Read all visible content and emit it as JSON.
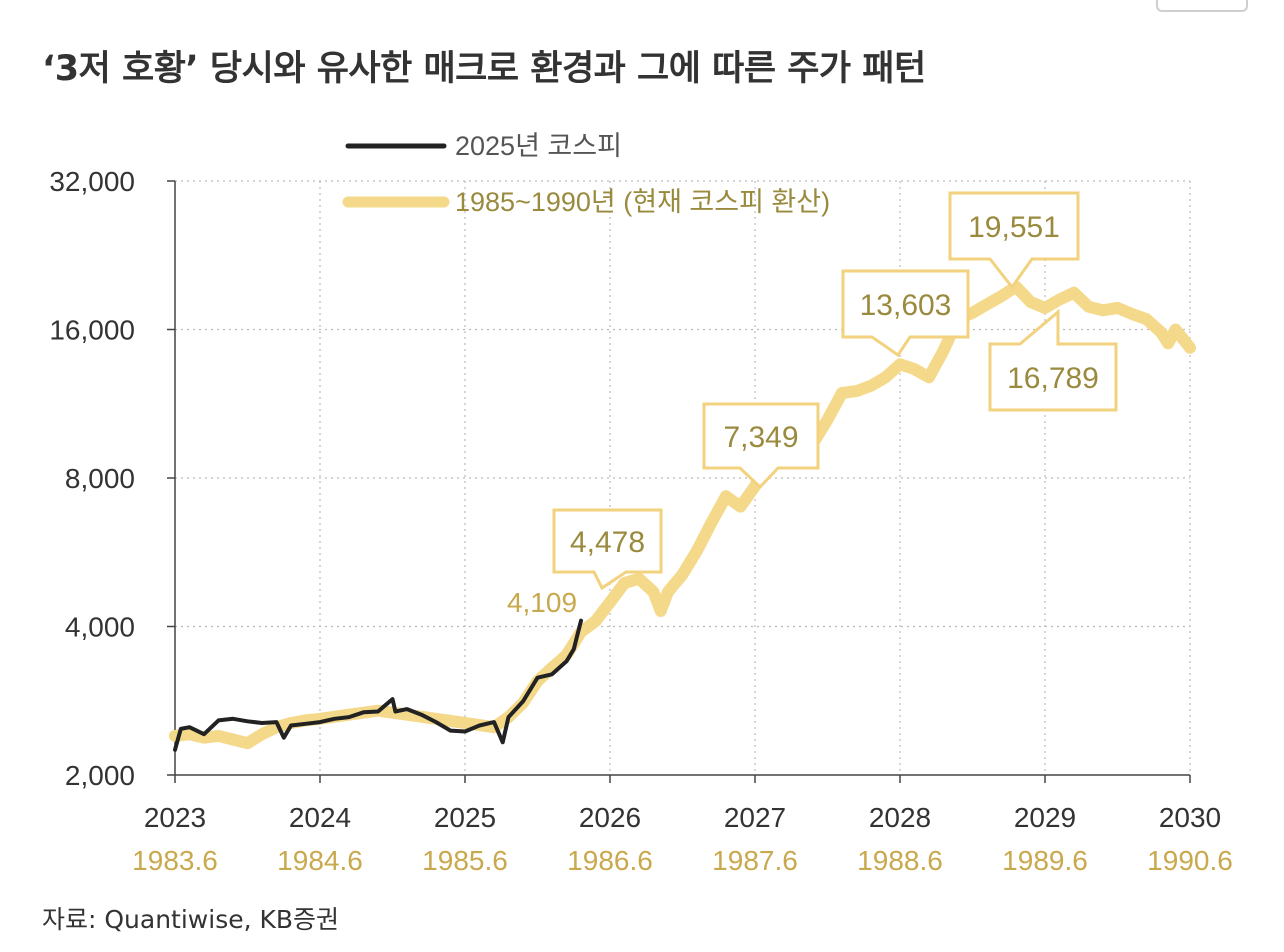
{
  "title": "‘3저 호황’ 당시와 유사한 매크로 환경과 그에 따른 주가 패턴",
  "source": "자료: Quantiwise, KB증권",
  "colors": {
    "kospi": "#222222",
    "past": "#F5D98A",
    "label": "#9A8A3E",
    "grid": "#BBBBBB",
    "axis": "#444444"
  },
  "chart_data": {
    "type": "line",
    "yscale": "log2",
    "ylim": [
      2000,
      32000
    ],
    "yticks": [
      "2,000",
      "4,000",
      "8,000",
      "16,000",
      "32,000"
    ],
    "ytick_values": [
      2000,
      4000,
      8000,
      16000,
      32000
    ],
    "xlim": [
      2023.0,
      2030.0
    ],
    "xticks": [
      "2023",
      "2024",
      "2025",
      "2026",
      "2027",
      "2028",
      "2029",
      "2030"
    ],
    "xticks_secondary": [
      "1983.6",
      "1984.6",
      "1985.6",
      "1986.6",
      "1987.6",
      "1988.6",
      "1989.6",
      "1990.6"
    ],
    "legend": [
      "2025년 코스피",
      "1985~1990년 (현재 코스피 환산)"
    ],
    "series": [
      {
        "name": "2025년 코스피",
        "x": [
          2023.0,
          2023.04,
          2023.1,
          2023.2,
          2023.3,
          2023.4,
          2023.5,
          2023.6,
          2023.7,
          2023.75,
          2023.8,
          2023.9,
          2024.0,
          2024.1,
          2024.2,
          2024.3,
          2024.4,
          2024.5,
          2024.52,
          2024.6,
          2024.7,
          2024.8,
          2024.9,
          2025.0,
          2025.1,
          2025.2,
          2025.26,
          2025.3,
          2025.4,
          2025.5,
          2025.6,
          2025.7,
          2025.75,
          2025.8
        ],
        "values": [
          2250,
          2480,
          2500,
          2420,
          2580,
          2600,
          2570,
          2550,
          2560,
          2380,
          2520,
          2540,
          2560,
          2600,
          2620,
          2680,
          2690,
          2850,
          2690,
          2720,
          2650,
          2560,
          2460,
          2450,
          2520,
          2560,
          2330,
          2620,
          2820,
          3150,
          3200,
          3400,
          3600,
          4109
        ]
      },
      {
        "name": "1985~1990년 (현재 코스피 환산)",
        "x": [
          2023.0,
          2023.1,
          2023.2,
          2023.3,
          2023.4,
          2023.5,
          2023.6,
          2023.7,
          2023.8,
          2023.9,
          2024.0,
          2024.2,
          2024.4,
          2024.6,
          2024.8,
          2025.0,
          2025.2,
          2025.3,
          2025.4,
          2025.5,
          2025.6,
          2025.7,
          2025.8,
          2025.9,
          2026.0,
          2026.1,
          2026.2,
          2026.3,
          2026.35,
          2026.4,
          2026.5,
          2026.6,
          2026.7,
          2026.8,
          2026.9,
          2027.0,
          2027.1,
          2027.2,
          2027.3,
          2027.4,
          2027.5,
          2027.6,
          2027.7,
          2027.8,
          2027.9,
          2028.0,
          2028.1,
          2028.2,
          2028.3,
          2028.4,
          2028.5,
          2028.6,
          2028.7,
          2028.8,
          2028.9,
          2029.0,
          2029.1,
          2029.2,
          2029.3,
          2029.4,
          2029.5,
          2029.6,
          2029.7,
          2029.8,
          2029.85,
          2029.9,
          2030.0
        ],
        "values": [
          2400,
          2420,
          2380,
          2400,
          2360,
          2320,
          2420,
          2500,
          2550,
          2580,
          2600,
          2650,
          2700,
          2650,
          2600,
          2550,
          2500,
          2620,
          2800,
          3100,
          3300,
          3500,
          3900,
          4100,
          4478,
          4900,
          5000,
          4700,
          4300,
          4700,
          5100,
          5700,
          6500,
          7349,
          7000,
          7700,
          9000,
          9300,
          9200,
          9400,
          10500,
          11900,
          12000,
          12300,
          12800,
          13603,
          13300,
          12800,
          14500,
          16800,
          17300,
          18000,
          18700,
          19551,
          18200,
          17700,
          18400,
          19000,
          17800,
          17500,
          17700,
          17200,
          16789,
          15800,
          15000,
          16000,
          14700
        ]
      }
    ],
    "annotations": [
      {
        "label": "19,551",
        "x": 2028.75,
        "value": 19551
      },
      {
        "label": "13,603",
        "x": 2028.0,
        "value": 13603
      },
      {
        "label": "16,789",
        "x": 2029.05,
        "value": 16789
      },
      {
        "label": "7,349",
        "x": 2026.8,
        "value": 7349
      },
      {
        "label": "4,478",
        "x": 2025.95,
        "value": 4478
      },
      {
        "label": "4,109",
        "x": 2025.8,
        "value": 4109
      }
    ]
  }
}
